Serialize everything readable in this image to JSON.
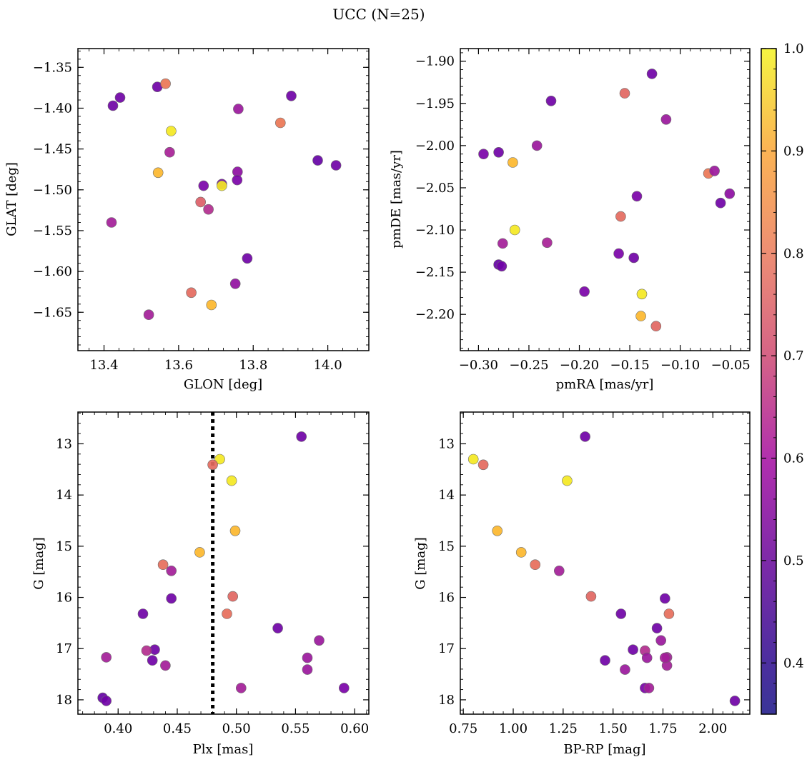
{
  "figure": {
    "suptitle": "UCC (N=25)"
  },
  "colorbar": {
    "colormap": "plasma",
    "vmin": 0.35,
    "vmax": 1.0,
    "ticks": [
      0.4,
      0.5,
      0.6,
      0.7,
      0.8,
      0.9,
      1.0
    ],
    "tick_labels": [
      "0.4",
      "0.5",
      "0.6",
      "0.7",
      "0.8",
      "0.9",
      "1.0"
    ]
  },
  "chart_data": [
    {
      "type": "scatter",
      "id": "glon-glat",
      "xlabel": "GLON [deg]",
      "ylabel": "GLAT [deg]",
      "xlim": [
        13.33,
        14.11
      ],
      "ylim": [
        -1.697,
        -1.327
      ],
      "y_inverted": false,
      "xticks": [
        13.4,
        13.6,
        13.8,
        14.0
      ],
      "xtick_labels": [
        "13.4",
        "13.6",
        "13.8",
        "14.0"
      ],
      "yticks": [
        -1.65,
        -1.6,
        -1.55,
        -1.5,
        -1.45,
        -1.4,
        -1.35
      ],
      "ytick_labels": [
        "−1.65",
        "−1.60",
        "−1.55",
        "−1.50",
        "−1.45",
        "−1.40",
        "−1.35"
      ],
      "x": [
        13.543,
        13.565,
        13.424,
        13.443,
        13.42,
        13.58,
        13.576,
        13.545,
        13.667,
        13.716,
        13.716,
        13.659,
        13.68,
        13.76,
        13.902,
        13.873,
        13.973,
        14.022,
        13.758,
        13.757,
        13.784,
        13.752,
        13.634,
        13.688,
        13.52
      ],
      "y": [
        -1.374,
        -1.37,
        -1.397,
        -1.387,
        -1.54,
        -1.428,
        -1.454,
        -1.479,
        -1.495,
        -1.493,
        -1.495,
        -1.515,
        -1.524,
        -1.401,
        -1.385,
        -1.418,
        -1.464,
        -1.47,
        -1.478,
        -1.488,
        -1.584,
        -1.615,
        -1.626,
        -1.641,
        -1.653
      ],
      "color": [
        0.4,
        0.74,
        0.4,
        0.4,
        0.51,
        0.97,
        0.52,
        0.88,
        0.42,
        0.42,
        0.97,
        0.68,
        0.55,
        0.49,
        0.4,
        0.74,
        0.38,
        0.4,
        0.46,
        0.42,
        0.4,
        0.47,
        0.71,
        0.88,
        0.51
      ]
    },
    {
      "type": "scatter",
      "id": "pmra-pmde",
      "xlabel": "pmRA [mas/yr]",
      "ylabel": "pmDE [mas/yr]",
      "xlim": [
        -0.318,
        -0.031
      ],
      "ylim": [
        -2.243,
        -1.885
      ],
      "y_inverted": false,
      "xticks": [
        -0.3,
        -0.25,
        -0.2,
        -0.15,
        -0.1,
        -0.05
      ],
      "xtick_labels": [
        "−0.30",
        "−0.25",
        "−0.20",
        "−0.15",
        "−0.10",
        "−0.05"
      ],
      "yticks": [
        -2.2,
        -2.15,
        -2.1,
        -2.05,
        -2.0,
        -1.95,
        -1.9
      ],
      "ytick_labels": [
        "−2.20",
        "−2.15",
        "−2.10",
        "−2.05",
        "−2.00",
        "−1.95",
        "−1.90"
      ],
      "x": [
        -0.128,
        -0.228,
        -0.155,
        -0.114,
        -0.295,
        -0.28,
        -0.242,
        -0.266,
        -0.072,
        -0.066,
        -0.051,
        -0.06,
        -0.143,
        -0.159,
        -0.264,
        -0.276,
        -0.232,
        -0.161,
        -0.146,
        -0.28,
        -0.277,
        -0.195,
        -0.138,
        -0.139,
        -0.124
      ],
      "y": [
        -1.915,
        -1.947,
        -1.938,
        -1.969,
        -2.01,
        -2.008,
        -2.0,
        -2.02,
        -2.033,
        -2.03,
        -2.057,
        -2.068,
        -2.06,
        -2.084,
        -2.1,
        -2.116,
        -2.115,
        -2.128,
        -2.133,
        -2.141,
        -2.143,
        -2.173,
        -2.176,
        -2.202,
        -2.214
      ],
      "color": [
        0.4,
        0.4,
        0.7,
        0.49,
        0.42,
        0.4,
        0.49,
        0.88,
        0.74,
        0.49,
        0.46,
        0.4,
        0.42,
        0.71,
        0.97,
        0.51,
        0.52,
        0.42,
        0.4,
        0.38,
        0.4,
        0.42,
        0.97,
        0.88,
        0.7
      ]
    },
    {
      "type": "scatter",
      "id": "plx-g",
      "xlabel": "Plx [mas]",
      "ylabel": "G [mag]",
      "xlim": [
        0.366,
        0.612
      ],
      "ylim": [
        18.28,
        12.38
      ],
      "y_inverted": true,
      "xticks": [
        0.4,
        0.45,
        0.5,
        0.55,
        0.6
      ],
      "xtick_labels": [
        "0.40",
        "0.45",
        "0.50",
        "0.55",
        "0.60"
      ],
      "yticks": [
        13,
        14,
        15,
        16,
        17,
        18
      ],
      "ytick_labels": [
        "13",
        "14",
        "15",
        "16",
        "17",
        "18"
      ],
      "vline": {
        "x": 0.48,
        "style": "dotted"
      },
      "x": [
        0.555,
        0.486,
        0.48,
        0.496,
        0.499,
        0.469,
        0.438,
        0.445,
        0.445,
        0.497,
        0.421,
        0.492,
        0.535,
        0.57,
        0.431,
        0.424,
        0.39,
        0.56,
        0.429,
        0.44,
        0.56,
        0.387,
        0.39,
        0.504,
        0.591
      ],
      "y": [
        12.86,
        13.3,
        13.41,
        13.72,
        14.7,
        15.12,
        15.36,
        15.48,
        16.02,
        15.98,
        16.32,
        16.32,
        16.6,
        16.84,
        17.02,
        17.04,
        17.17,
        17.18,
        17.23,
        17.33,
        17.41,
        17.96,
        18.02,
        17.77,
        17.77
      ],
      "color": [
        0.4,
        0.97,
        0.71,
        0.97,
        0.88,
        0.88,
        0.72,
        0.51,
        0.4,
        0.7,
        0.4,
        0.72,
        0.4,
        0.49,
        0.4,
        0.55,
        0.51,
        0.49,
        0.4,
        0.51,
        0.49,
        0.38,
        0.4,
        0.51,
        0.42
      ]
    },
    {
      "type": "scatter",
      "id": "bprp-g",
      "xlabel": "BP-RP [mag]",
      "ylabel": "G [mag]",
      "xlim": [
        0.735,
        2.185
      ],
      "ylim": [
        18.28,
        12.38
      ],
      "y_inverted": true,
      "xticks": [
        0.75,
        1.0,
        1.25,
        1.5,
        1.75,
        2.0
      ],
      "xtick_labels": [
        "0.75",
        "1.00",
        "1.25",
        "1.50",
        "1.75",
        "2.00"
      ],
      "yticks": [
        13,
        14,
        15,
        16,
        17,
        18
      ],
      "ytick_labels": [
        "13",
        "14",
        "15",
        "16",
        "17",
        "18"
      ],
      "x": [
        1.36,
        0.8,
        0.85,
        1.27,
        0.92,
        1.04,
        1.11,
        1.23,
        1.76,
        1.39,
        1.54,
        1.78,
        1.72,
        1.74,
        1.6,
        1.66,
        1.77,
        1.67,
        1.46,
        1.77,
        1.56,
        1.66,
        1.68,
        2.11,
        1.76
      ],
      "y": [
        12.86,
        13.3,
        13.41,
        13.72,
        14.7,
        15.12,
        15.36,
        15.48,
        16.02,
        15.98,
        16.32,
        16.32,
        16.6,
        16.84,
        17.02,
        17.04,
        17.17,
        17.18,
        17.23,
        17.33,
        17.41,
        17.77,
        17.77,
        18.02,
        17.18
      ],
      "color": [
        0.4,
        0.97,
        0.71,
        0.97,
        0.88,
        0.88,
        0.72,
        0.51,
        0.4,
        0.7,
        0.4,
        0.72,
        0.4,
        0.49,
        0.4,
        0.55,
        0.51,
        0.49,
        0.4,
        0.51,
        0.49,
        0.42,
        0.51,
        0.4,
        0.51
      ]
    }
  ]
}
